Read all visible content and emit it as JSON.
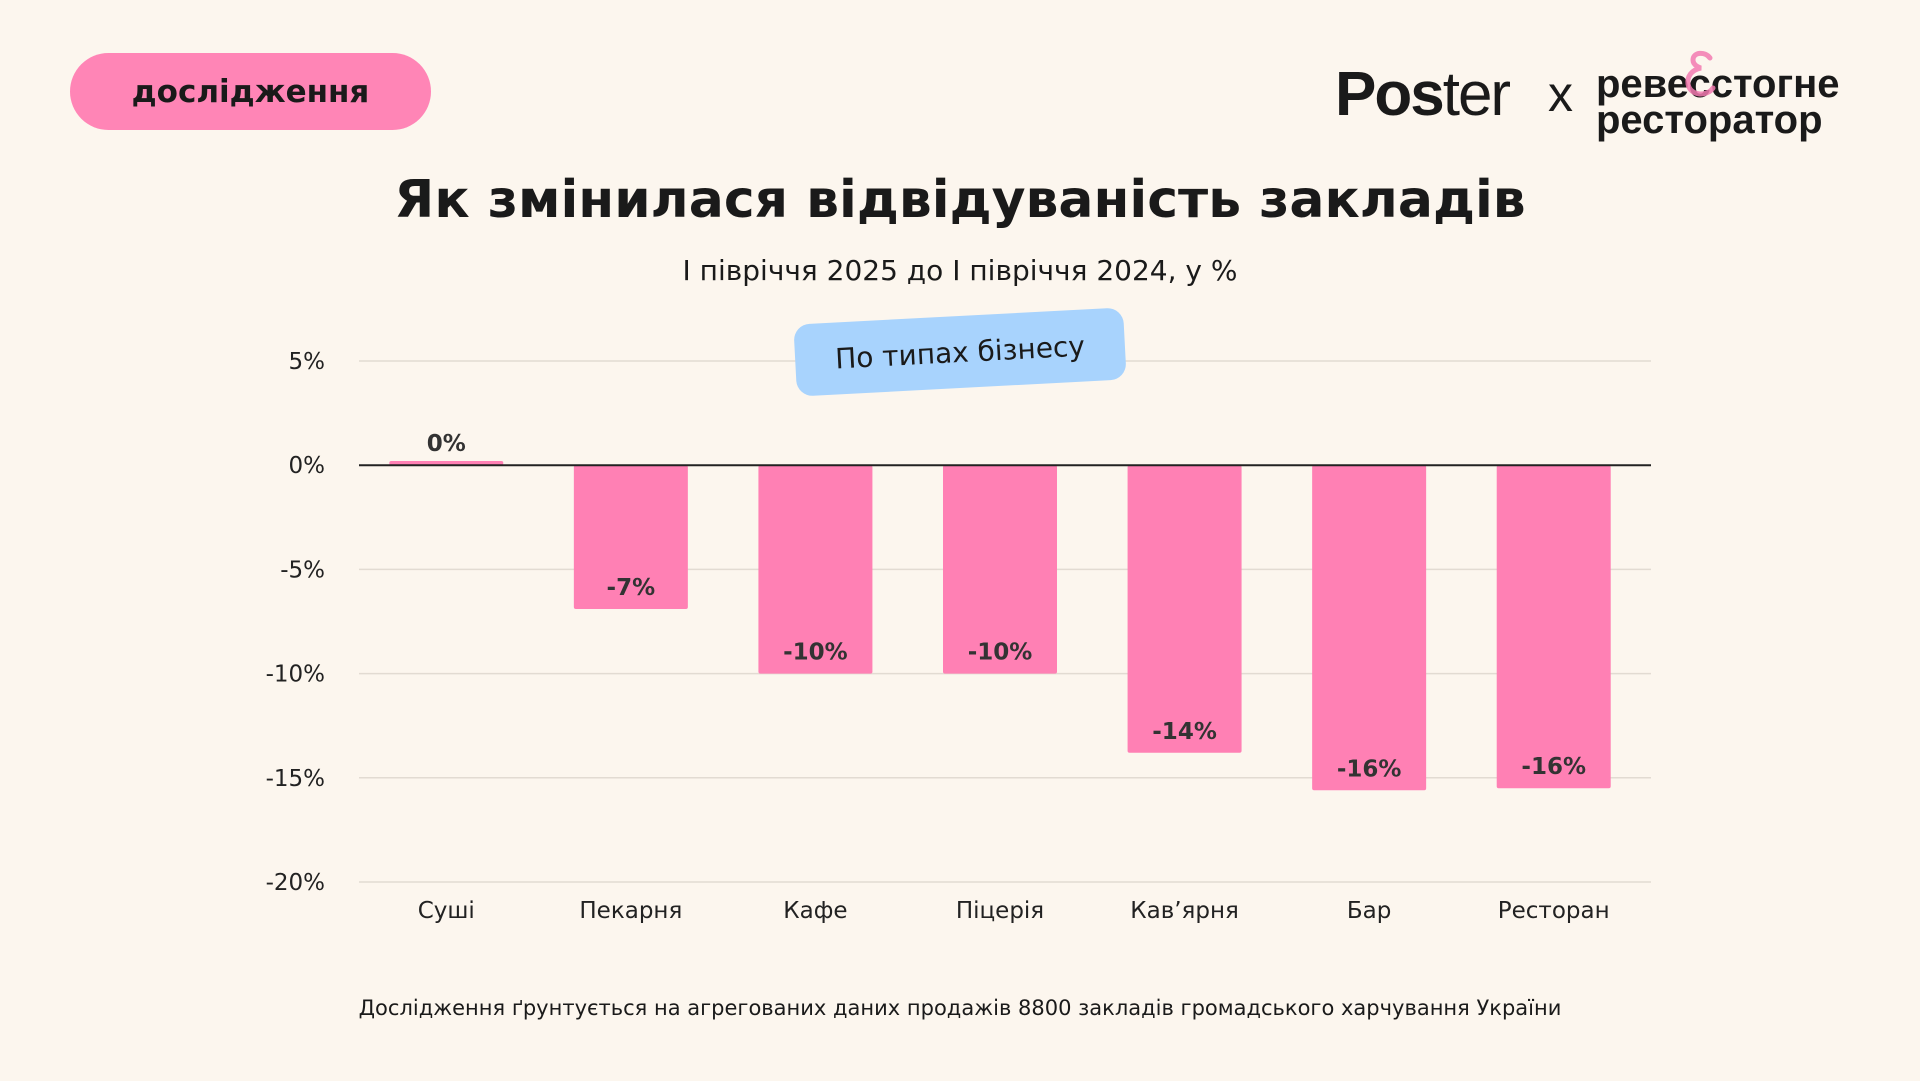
{
  "badge": "дослідження",
  "logos": {
    "poster_bold": "Pos",
    "poster_light": "ter",
    "x": "x",
    "partner_line1": "ревесстогне",
    "partner_line2": "ресторатор",
    "partner_amp": "&"
  },
  "colors": {
    "background": "#fcf6ee",
    "bar": "#ff80b4",
    "badge": "#ff85b6",
    "tag": "#a8d3fd"
  },
  "tag": "По типах бізнесу",
  "footer": "Дослідження ґрунтується на агрегованих даних продажів 8800 закладів громадського харчування України",
  "chart_data": {
    "type": "bar",
    "title": "Як змінилася відвідуваність закладів",
    "subtitle": "I півріччя 2025 до I півріччя 2024, у %",
    "categories": [
      "Суші",
      "Пекарня",
      "Кафе",
      "Піцерія",
      "Кав’ярня",
      "Бар",
      "Ресторан"
    ],
    "values": [
      0.2,
      -6.9,
      -10,
      -10,
      -13.8,
      -15.6,
      -15.5
    ],
    "data_labels": [
      "0%",
      "-7%",
      "-10%",
      "-10%",
      "-14%",
      "-16%",
      "-16%"
    ],
    "yticks": [
      5,
      0,
      -5,
      -10,
      -15,
      -20
    ],
    "ytick_labels": [
      "5%",
      "0%",
      "-5%",
      "-10%",
      "-15%",
      "-20%"
    ],
    "ylim": [
      -20,
      5
    ],
    "grid": true,
    "xlabel": "",
    "ylabel": ""
  }
}
